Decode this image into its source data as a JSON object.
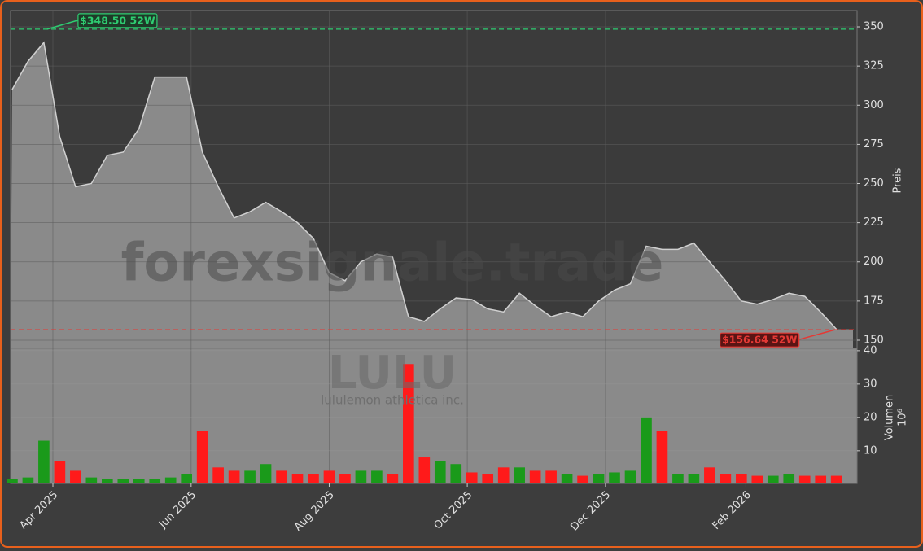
{
  "chart_data": {
    "type": "line",
    "watermark": "forexsignale.trade",
    "symbol": "LULU",
    "company": "lululemon athletica inc.",
    "ylabel": "Preis",
    "categories": [
      null,
      null,
      null,
      null,
      null,
      null,
      null,
      null,
      null,
      null,
      null,
      null,
      null,
      null,
      null,
      null,
      null,
      null,
      null,
      null,
      null,
      null,
      null,
      null,
      null,
      null,
      null,
      null,
      null,
      null,
      null,
      null,
      null,
      null,
      null,
      null,
      null,
      null,
      null,
      null,
      null,
      null,
      null,
      null,
      null,
      null,
      null,
      null,
      null,
      null,
      null,
      null,
      null
    ],
    "values": [
      310,
      328,
      340,
      280,
      248,
      250,
      268,
      270,
      285,
      318,
      318,
      318,
      270,
      248,
      228,
      232,
      238,
      232,
      225,
      215,
      193,
      188,
      200,
      205,
      203,
      165,
      162,
      170,
      177,
      176,
      170,
      168,
      180,
      172,
      165,
      168,
      165,
      175,
      182,
      186,
      210,
      208,
      208,
      212,
      200,
      188,
      175,
      173,
      176,
      180,
      178,
      168,
      157
    ],
    "xlim": [
      -0.1,
      53.3
    ],
    "xticks": [
      {
        "value": 2.57,
        "label": "Apr 2025"
      },
      {
        "value": 11.29,
        "label": "Jun 2025"
      },
      {
        "value": 20,
        "label": "Aug 2025"
      },
      {
        "value": 28.71,
        "label": "Oct 2025"
      },
      {
        "value": 37.43,
        "label": "Dec 2025"
      },
      {
        "value": 46.29,
        "label": "Feb 2026"
      }
    ],
    "ylim": [
      144.8,
      360.4
    ],
    "yticks": [
      150,
      175,
      200,
      225,
      250,
      275,
      300,
      325,
      350
    ],
    "grid": true,
    "line_color": "#d0d0d0",
    "area_color": "#8a8a8a",
    "annotations": [
      {
        "value": 348.5,
        "label": "$348.50 52W",
        "color": "#2ecc71"
      },
      {
        "value": 156.64,
        "label": "$156.64 52W",
        "color": "#e53935"
      }
    ],
    "volume": {
      "ylabel": "Volumen",
      "scale": "10⁶",
      "values": [
        1.5,
        2,
        13,
        7,
        4,
        2,
        1.5,
        1.5,
        1.5,
        1.5,
        2,
        3,
        16,
        5,
        4,
        4,
        6,
        4,
        3,
        3,
        4,
        3,
        4,
        4,
        3,
        36,
        8,
        7,
        6,
        3.5,
        3,
        5,
        5,
        4,
        4,
        3,
        2.5,
        3,
        3.5,
        4,
        20,
        16,
        3,
        3,
        5,
        3,
        3,
        2.5,
        2.5,
        3,
        2.5,
        2.5,
        2.5
      ],
      "ylim": [
        0.2,
        40.7
      ],
      "yticks": [
        10,
        20,
        30,
        40
      ],
      "up_color": "#1a9a1a",
      "down_color": "#ff1a1a"
    }
  }
}
